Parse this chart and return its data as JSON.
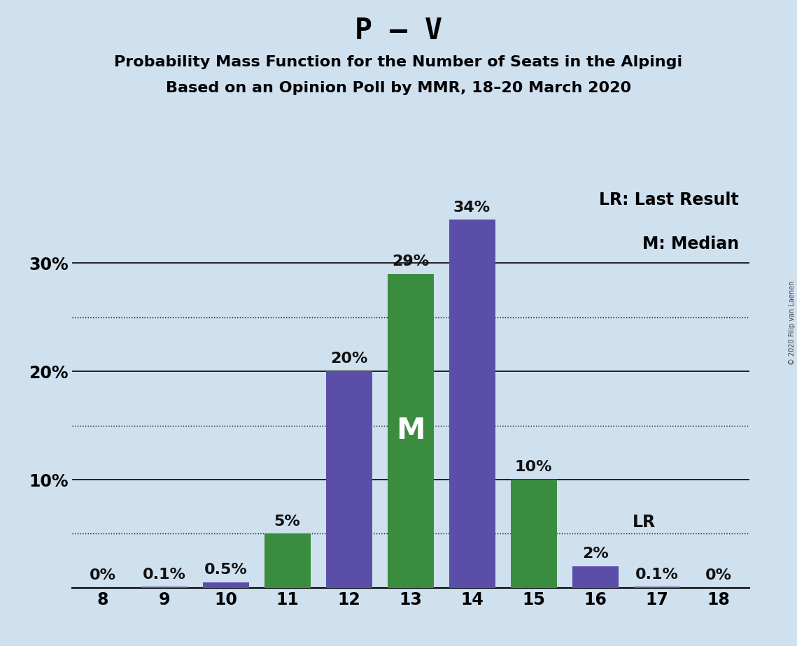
{
  "title": "P – V",
  "subtitle1": "Probability Mass Function for the Number of Seats in the Alpingi",
  "subtitle2": "Based on an Opinion Poll by MMR, 18–20 March 2020",
  "copyright": "© 2020 Filip van Laenen",
  "seats": [
    8,
    9,
    10,
    11,
    12,
    13,
    14,
    15,
    16,
    17,
    18
  ],
  "values": [
    0.0,
    0.1,
    0.5,
    5.0,
    20.0,
    29.0,
    34.0,
    10.0,
    2.0,
    0.1,
    0.0
  ],
  "colors": [
    "#5b4ea8",
    "#5b4ea8",
    "#5b4ea8",
    "#3a8c3f",
    "#5b4ea8",
    "#3a8c3f",
    "#5b4ea8",
    "#3a8c3f",
    "#5b4ea8",
    "#5b4ea8",
    "#3a8c3f"
  ],
  "labels": [
    "0%",
    "0.1%",
    "0.5%",
    "5%",
    "20%",
    "29%",
    "34%",
    "10%",
    "2%",
    "0.1%",
    "0%"
  ],
  "median_seat": 13,
  "lr_seat": 16,
  "lr_value": 5.0,
  "background_color": "#cfe0ef",
  "bar_purple": "#5b4ea8",
  "bar_green": "#3a8c3f",
  "ylim": [
    0,
    37
  ],
  "solid_yticks": [
    10,
    20,
    30
  ],
  "dotted_yticks": [
    5,
    15,
    25
  ],
  "ytick_labels_pos": [
    10,
    20,
    30
  ],
  "ytick_labels": [
    "10%",
    "20%",
    "30%"
  ],
  "legend_lr": "LR: Last Result",
  "legend_m": "M: Median",
  "title_fontsize": 30,
  "subtitle_fontsize": 16,
  "label_fontsize": 16,
  "tick_fontsize": 17,
  "legend_fontsize": 17,
  "m_fontsize": 30
}
